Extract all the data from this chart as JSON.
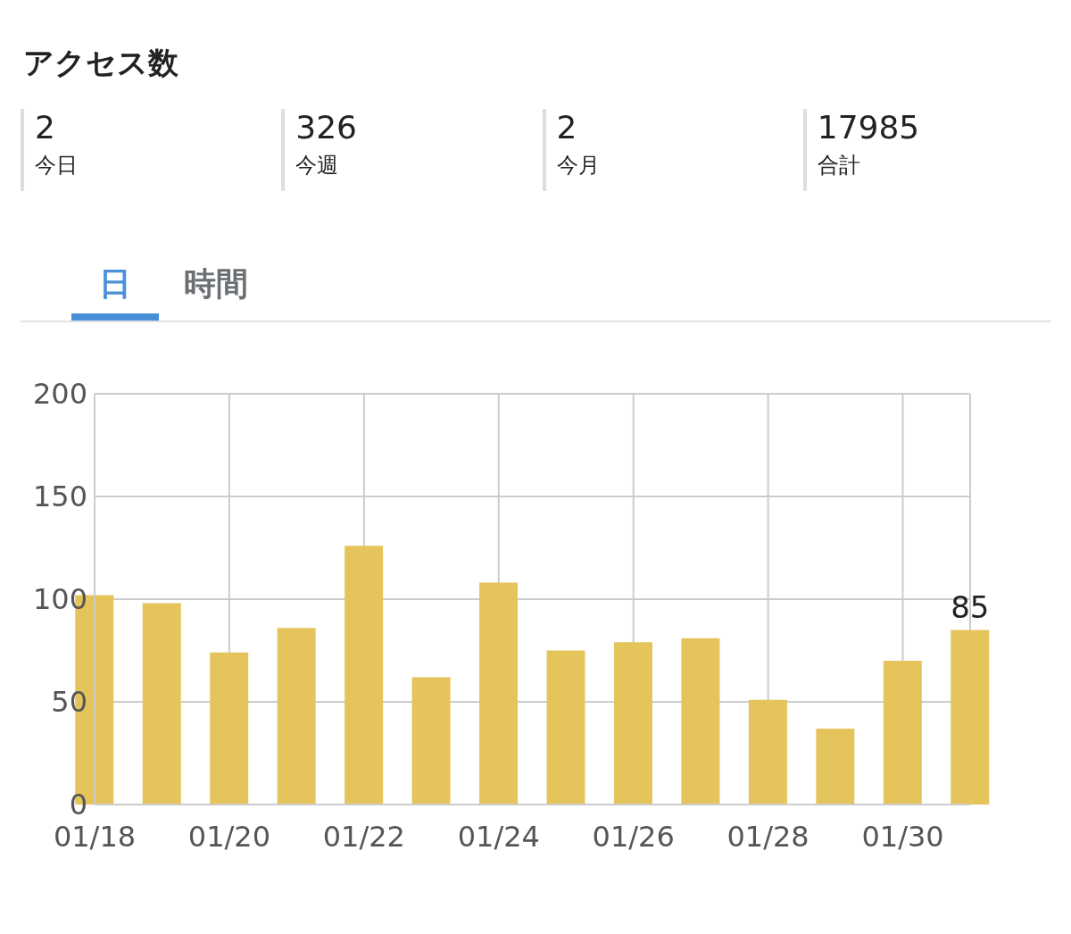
{
  "chart_data": {
    "type": "bar",
    "title": "アクセス数",
    "annotations": [
      "2",
      "今日",
      "326",
      "今週",
      "2",
      "今月",
      "17985",
      "合計",
      "日",
      "時間"
    ],
    "categories": [
      "01/18",
      null,
      "01/20",
      null,
      "01/22",
      null,
      "01/24",
      null,
      "01/26",
      null,
      "01/28",
      null,
      "01/30",
      null
    ],
    "values": [
      102,
      98,
      74,
      86,
      126,
      62,
      108,
      75,
      79,
      81,
      51,
      37,
      70,
      85
    ],
    "value_labels": [
      null,
      null,
      null,
      null,
      null,
      null,
      null,
      null,
      null,
      null,
      null,
      null,
      null,
      "85"
    ],
    "color": "#e5c45c",
    "ylim": [
      0,
      200
    ],
    "yticks": [
      0,
      50,
      100,
      150,
      200
    ],
    "grid": true,
    "legend": false
  }
}
